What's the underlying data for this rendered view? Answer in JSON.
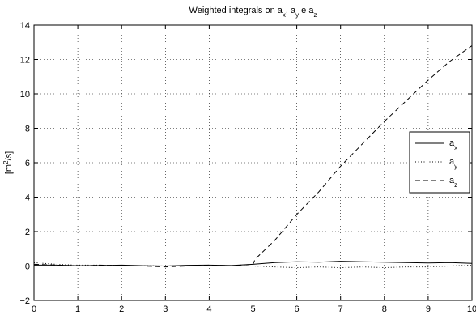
{
  "chart_data": {
    "type": "line",
    "title": "Weighted integrals on a_x, a_y e a_z",
    "ylabel": "[m^2/s]",
    "xlabel": "",
    "xlim": [
      0,
      10
    ],
    "ylim": [
      -2,
      14
    ],
    "xticks": [
      0,
      1,
      2,
      3,
      4,
      5,
      6,
      7,
      8,
      9,
      10
    ],
    "yticks": [
      -2,
      0,
      2,
      4,
      6,
      8,
      10,
      12,
      14
    ],
    "grid": true,
    "legend_position": "right",
    "series": [
      {
        "name": "a_x",
        "style": "solid",
        "x": [
          0,
          0.5,
          1,
          1.5,
          2,
          2.5,
          3,
          3.5,
          4,
          4.5,
          5,
          5.5,
          6,
          6.5,
          7,
          7.5,
          8,
          8.5,
          9,
          9.5,
          10
        ],
        "y": [
          0.05,
          0.05,
          0.02,
          0.03,
          0.05,
          0.02,
          0.0,
          0.04,
          0.05,
          0.03,
          0.1,
          0.2,
          0.25,
          0.22,
          0.28,
          0.25,
          0.22,
          0.2,
          0.18,
          0.2,
          0.15
        ]
      },
      {
        "name": "a_y",
        "style": "dotted",
        "x": [
          0,
          0.5,
          1,
          1.5,
          2,
          2.5,
          3,
          3.5,
          4,
          4.5,
          5,
          5.5,
          6,
          6.5,
          7,
          7.5,
          8,
          8.5,
          9,
          9.5,
          10
        ],
        "y": [
          0.2,
          0.1,
          0.05,
          0.05,
          0.03,
          0.02,
          0.0,
          0.02,
          0.0,
          0.02,
          0.0,
          -0.05,
          -0.1,
          -0.05,
          -0.1,
          -0.05,
          -0.1,
          -0.05,
          -0.05,
          0.0,
          0.05
        ]
      },
      {
        "name": "a_z",
        "style": "dashed",
        "x": [
          0,
          0.5,
          1,
          1.5,
          2,
          2.5,
          3,
          3.5,
          4,
          4.5,
          5,
          5.05,
          5.5,
          6,
          6.5,
          7,
          7.5,
          8,
          8.5,
          9,
          9.5,
          10
        ],
        "y": [
          0.1,
          0.05,
          0.0,
          0.05,
          0.02,
          0.0,
          -0.05,
          0.0,
          0.05,
          0.02,
          0.1,
          0.4,
          1.5,
          3.0,
          4.3,
          5.8,
          7.1,
          8.4,
          9.6,
          10.8,
          11.9,
          12.8
        ]
      }
    ]
  }
}
